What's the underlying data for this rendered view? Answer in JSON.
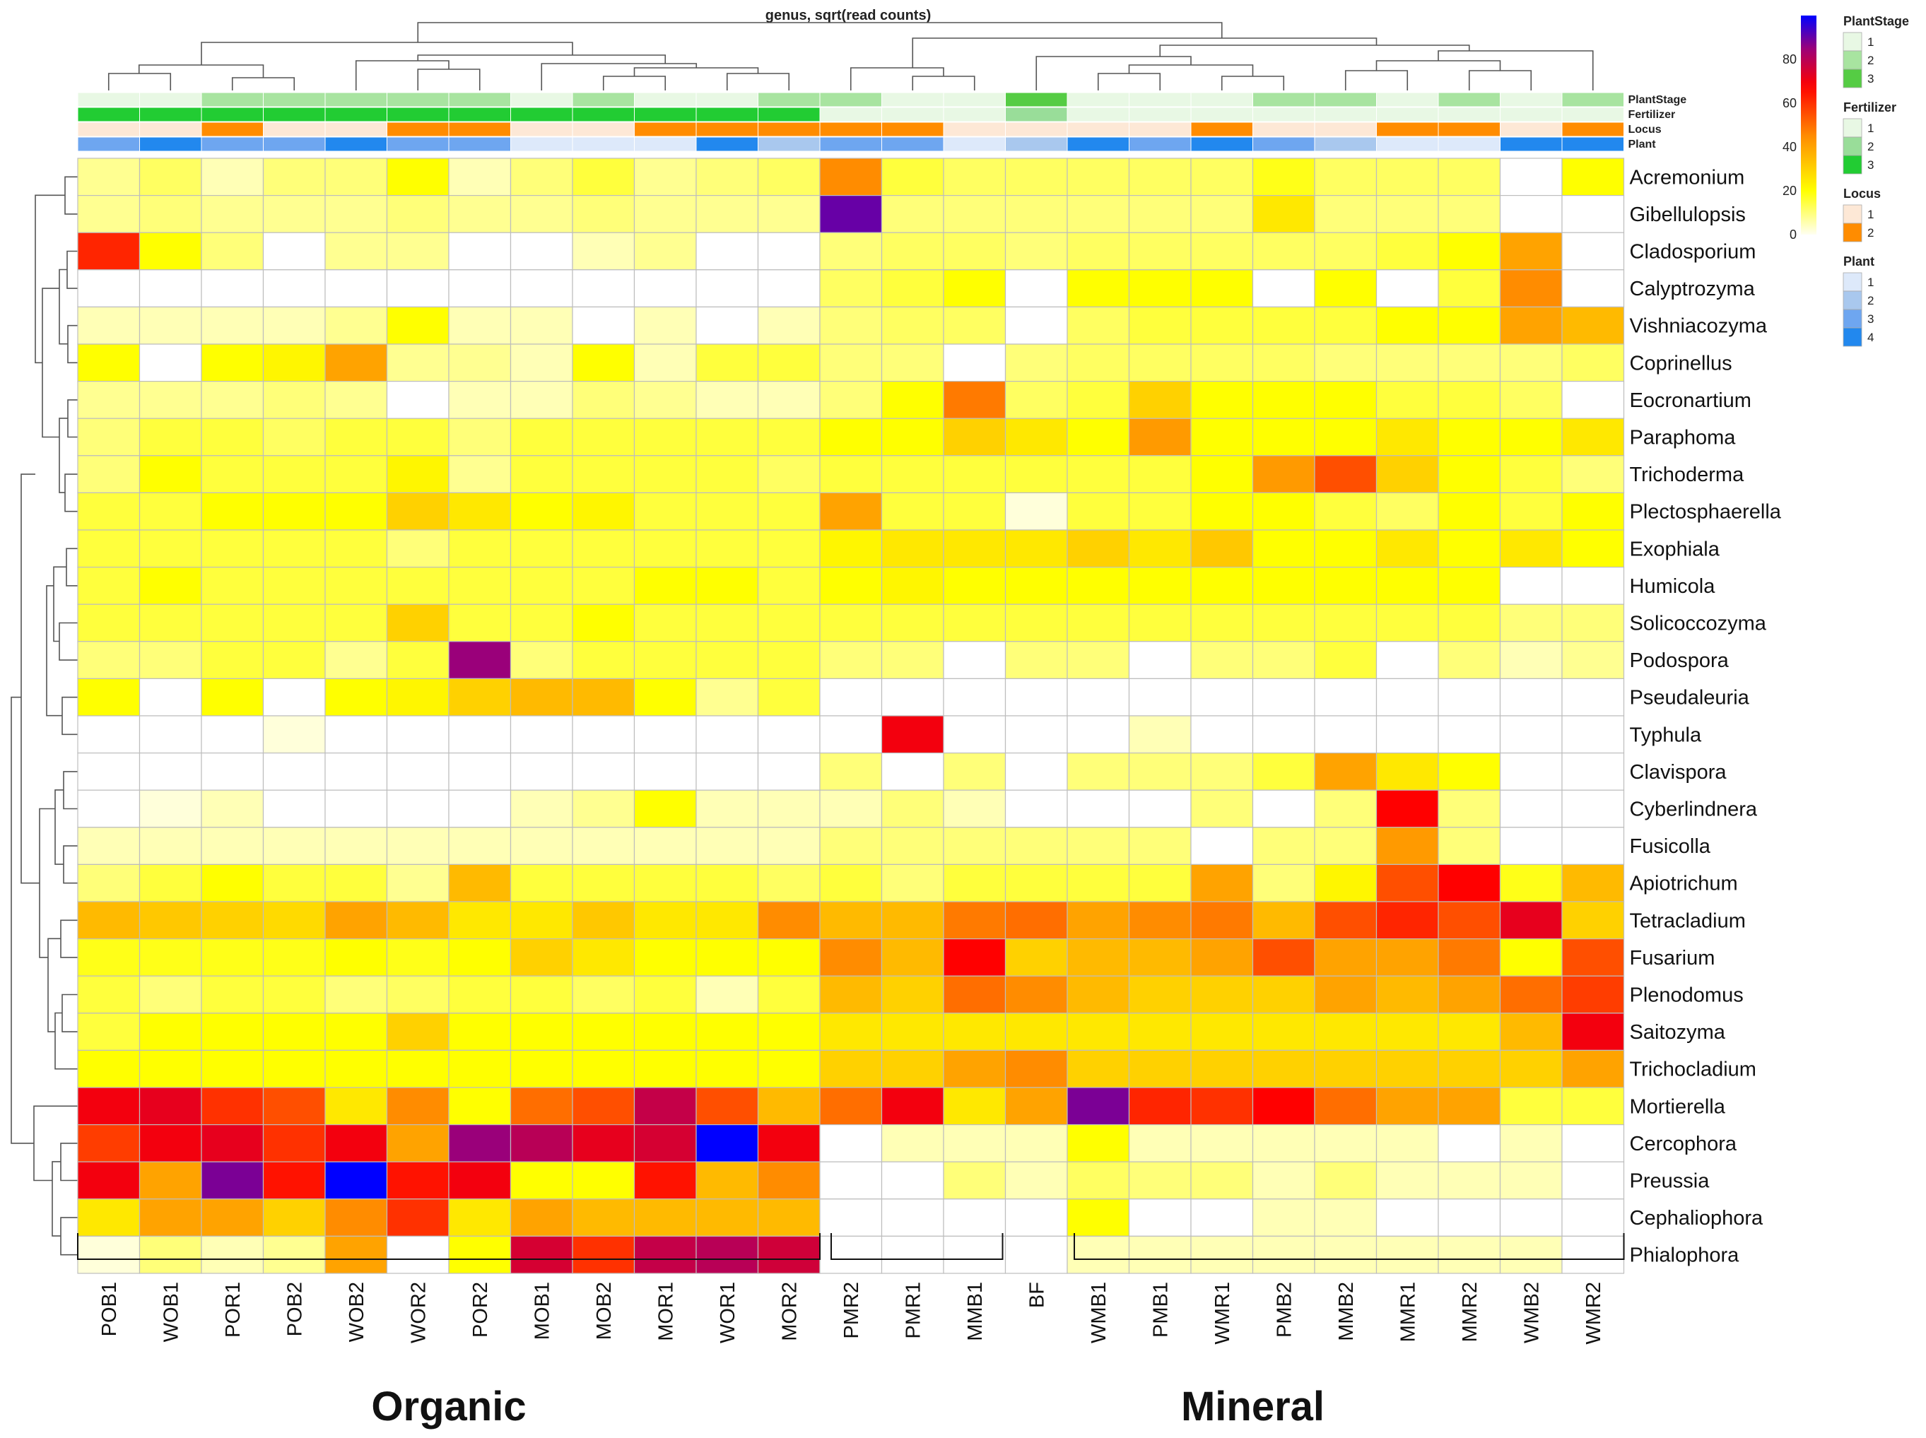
{
  "chart_data": {
    "type": "heatmap",
    "title": "genus, sqrt(read counts)",
    "columns": [
      "POB1",
      "WOB1",
      "POR1",
      "POB2",
      "WOB2",
      "WOR2",
      "POR2",
      "MOB1",
      "MOB2",
      "MOR1",
      "WOR1",
      "MOR2",
      "PMR2",
      "PMR1",
      "MMB1",
      "BF",
      "WMB1",
      "PMB1",
      "WMR1",
      "PMB2",
      "MMB2",
      "MMR1",
      "MMR2",
      "WMB2",
      "WMR2"
    ],
    "rows": [
      "Acremonium",
      "Gibellulopsis",
      "Cladosporium",
      "Calyptrozyma",
      "Vishniacozyma",
      "Coprinellus",
      "Eocronartium",
      "Paraphoma",
      "Trichoderma",
      "Plectosphaerella",
      "Exophiala",
      "Humicola",
      "Solicoccozyma",
      "Podospora",
      "Pseudaleuria",
      "Typhula",
      "Clavispora",
      "Cyberlindnera",
      "Fusicolla",
      "Apiotrichum",
      "Tetracladium",
      "Fusarium",
      "Plenodomus",
      "Saitozyma",
      "Trichocladium",
      "Mortierella",
      "Cercophora",
      "Preussia",
      "Cephaliophora",
      "Phialophora"
    ],
    "values": [
      [
        8,
        12,
        5,
        10,
        10,
        20,
        5,
        10,
        15,
        8,
        10,
        12,
        45,
        15,
        12,
        12,
        12,
        12,
        12,
        18,
        12,
        12,
        12,
        0,
        20
      ],
      [
        8,
        10,
        8,
        8,
        8,
        10,
        8,
        8,
        10,
        8,
        8,
        8,
        90,
        10,
        10,
        10,
        10,
        10,
        10,
        25,
        10,
        10,
        10,
        0,
        0
      ],
      [
        62,
        20,
        10,
        0,
        8,
        8,
        0,
        0,
        5,
        8,
        0,
        0,
        10,
        12,
        12,
        10,
        12,
        12,
        12,
        12,
        12,
        15,
        20,
        40,
        0
      ],
      [
        0,
        0,
        0,
        0,
        0,
        0,
        0,
        0,
        0,
        0,
        0,
        0,
        12,
        15,
        20,
        0,
        20,
        20,
        20,
        0,
        20,
        0,
        15,
        45,
        0
      ],
      [
        5,
        5,
        5,
        5,
        8,
        20,
        5,
        5,
        0,
        5,
        0,
        5,
        10,
        12,
        12,
        0,
        12,
        15,
        15,
        15,
        15,
        20,
        20,
        40,
        35
      ],
      [
        20,
        0,
        20,
        22,
        40,
        8,
        8,
        5,
        20,
        5,
        15,
        15,
        10,
        10,
        0,
        10,
        12,
        12,
        12,
        12,
        10,
        10,
        10,
        10,
        12
      ],
      [
        8,
        8,
        8,
        10,
        8,
        0,
        5,
        5,
        10,
        8,
        5,
        5,
        10,
        20,
        48,
        12,
        15,
        30,
        20,
        20,
        20,
        15,
        15,
        12,
        0
      ],
      [
        10,
        15,
        15,
        12,
        15,
        15,
        10,
        15,
        15,
        15,
        15,
        15,
        20,
        20,
        30,
        25,
        20,
        42,
        20,
        20,
        20,
        25,
        20,
        20,
        25
      ],
      [
        10,
        20,
        15,
        15,
        15,
        22,
        8,
        15,
        15,
        15,
        15,
        12,
        15,
        15,
        15,
        15,
        15,
        15,
        20,
        42,
        55,
        30,
        20,
        15,
        10
      ],
      [
        15,
        15,
        20,
        20,
        20,
        30,
        25,
        20,
        22,
        15,
        15,
        15,
        40,
        15,
        15,
        2,
        15,
        15,
        20,
        20,
        15,
        12,
        20,
        15,
        20
      ],
      [
        15,
        15,
        15,
        15,
        15,
        10,
        15,
        15,
        15,
        15,
        15,
        15,
        22,
        25,
        25,
        25,
        30,
        25,
        32,
        20,
        20,
        25,
        20,
        25,
        20
      ],
      [
        15,
        20,
        15,
        15,
        15,
        15,
        15,
        15,
        15,
        20,
        20,
        15,
        20,
        22,
        20,
        20,
        20,
        20,
        20,
        20,
        20,
        20,
        20,
        0,
        0
      ],
      [
        15,
        15,
        15,
        15,
        15,
        30,
        15,
        15,
        20,
        15,
        15,
        15,
        15,
        15,
        15,
        15,
        15,
        15,
        15,
        15,
        15,
        15,
        15,
        10,
        10
      ],
      [
        10,
        10,
        15,
        15,
        8,
        15,
        85,
        10,
        15,
        15,
        15,
        15,
        10,
        10,
        0,
        10,
        10,
        0,
        10,
        10,
        15,
        0,
        10,
        5,
        8
      ],
      [
        20,
        0,
        20,
        0,
        20,
        22,
        30,
        35,
        35,
        20,
        8,
        15,
        0,
        0,
        0,
        0,
        0,
        0,
        0,
        0,
        0,
        0,
        0,
        0,
        0
      ],
      [
        0,
        0,
        0,
        2,
        0,
        0,
        0,
        0,
        0,
        0,
        0,
        0,
        0,
        70,
        0,
        0,
        0,
        5,
        0,
        0,
        0,
        0,
        0,
        0,
        0
      ],
      [
        0,
        0,
        0,
        0,
        0,
        0,
        0,
        0,
        0,
        0,
        0,
        0,
        10,
        0,
        10,
        0,
        10,
        10,
        10,
        15,
        40,
        25,
        20,
        0,
        0
      ],
      [
        0,
        2,
        5,
        0,
        0,
        0,
        0,
        5,
        8,
        20,
        5,
        5,
        5,
        10,
        5,
        0,
        0,
        0,
        10,
        0,
        10,
        68,
        10,
        0,
        0
      ],
      [
        5,
        5,
        5,
        5,
        5,
        5,
        5,
        5,
        5,
        5,
        5,
        5,
        10,
        10,
        10,
        10,
        10,
        10,
        0,
        10,
        10,
        42,
        10,
        0,
        0
      ],
      [
        10,
        15,
        20,
        15,
        15,
        8,
        35,
        15,
        15,
        15,
        15,
        12,
        15,
        10,
        15,
        15,
        15,
        15,
        40,
        10,
        22,
        55,
        68,
        18,
        35
      ],
      [
        35,
        32,
        30,
        28,
        40,
        35,
        25,
        25,
        32,
        25,
        25,
        45,
        35,
        35,
        48,
        50,
        40,
        45,
        48,
        35,
        55,
        62,
        55,
        72,
        30
      ],
      [
        18,
        18,
        18,
        18,
        20,
        18,
        20,
        30,
        25,
        20,
        20,
        20,
        45,
        35,
        68,
        30,
        35,
        35,
        40,
        55,
        40,
        40,
        48,
        20,
        55
      ],
      [
        15,
        10,
        15,
        15,
        10,
        12,
        15,
        15,
        12,
        15,
        5,
        15,
        35,
        30,
        50,
        45,
        35,
        30,
        30,
        30,
        40,
        35,
        40,
        50,
        58
      ],
      [
        15,
        20,
        20,
        20,
        20,
        30,
        20,
        20,
        20,
        20,
        20,
        20,
        25,
        25,
        25,
        25,
        25,
        25,
        25,
        25,
        25,
        25,
        25,
        35,
        70
      ],
      [
        20,
        20,
        20,
        20,
        20,
        20,
        20,
        20,
        20,
        20,
        20,
        20,
        30,
        30,
        40,
        45,
        30,
        30,
        30,
        30,
        30,
        30,
        30,
        30,
        40
      ],
      [
        70,
        72,
        60,
        55,
        25,
        45,
        20,
        50,
        55,
        78,
        55,
        35,
        50,
        70,
        25,
        40,
        88,
        62,
        60,
        68,
        50,
        40,
        40,
        15,
        15
      ],
      [
        58,
        70,
        72,
        60,
        70,
        40,
        85,
        80,
        72,
        75,
        100,
        70,
        0,
        5,
        5,
        5,
        20,
        5,
        5,
        5,
        5,
        5,
        0,
        5,
        0
      ],
      [
        70,
        40,
        88,
        65,
        100,
        65,
        70,
        20,
        20,
        65,
        35,
        45,
        0,
        0,
        10,
        5,
        12,
        10,
        10,
        5,
        10,
        5,
        5,
        5,
        0
      ],
      [
        25,
        40,
        40,
        30,
        45,
        60,
        25,
        40,
        35,
        35,
        35,
        35,
        0,
        0,
        0,
        0,
        20,
        0,
        0,
        5,
        5,
        0,
        0,
        0,
        0
      ],
      [
        2,
        10,
        5,
        8,
        40,
        0,
        20,
        75,
        60,
        78,
        80,
        76,
        0,
        0,
        0,
        0,
        5,
        5,
        5,
        5,
        5,
        5,
        5,
        5,
        0
      ]
    ],
    "annotations": {
      "PlantStage": [
        1,
        1,
        2,
        2,
        2,
        2,
        2,
        1,
        2,
        1,
        1,
        2,
        2,
        1,
        1,
        3,
        1,
        1,
        1,
        2,
        2,
        1,
        2,
        1,
        2
      ],
      "Fertilizer": [
        3,
        3,
        3,
        3,
        3,
        3,
        3,
        3,
        3,
        3,
        3,
        3,
        1,
        1,
        1,
        2,
        1,
        1,
        1,
        1,
        1,
        1,
        1,
        1,
        1
      ],
      "Locus": [
        1,
        1,
        2,
        1,
        1,
        2,
        2,
        1,
        1,
        2,
        2,
        2,
        2,
        2,
        1,
        1,
        1,
        1,
        2,
        1,
        1,
        2,
        2,
        1,
        2
      ],
      "Plant": [
        3,
        4,
        3,
        3,
        4,
        3,
        3,
        1,
        1,
        1,
        4,
        2,
        3,
        3,
        1,
        2,
        4,
        3,
        4,
        3,
        2,
        1,
        1,
        4,
        4
      ]
    },
    "annotation_labels": [
      "PlantStage",
      "Fertilizer",
      "Locus",
      "Plant"
    ],
    "color_scale": {
      "range": [
        0,
        100
      ],
      "ticks": [
        "0",
        "20",
        "40",
        "60",
        "80"
      ],
      "stops": [
        "#fffff2",
        "#ffff00",
        "#ff8c00",
        "#ff0000",
        "#9a007a",
        "#0000ff"
      ]
    },
    "legends": [
      {
        "title": "PlantStage",
        "levels": [
          "1",
          "2",
          "3"
        ],
        "colors": [
          "#e8f8e4",
          "#a8e4a0",
          "#55cc44"
        ]
      },
      {
        "title": "Fertilizer",
        "levels": [
          "1",
          "2",
          "3"
        ],
        "colors": [
          "#e8f8e4",
          "#99dd99",
          "#22cc33"
        ]
      },
      {
        "title": "Locus",
        "levels": [
          "1",
          "2"
        ],
        "colors": [
          "#fde8d6",
          "#ff8c00"
        ]
      },
      {
        "title": "Plant",
        "levels": [
          "1",
          "2",
          "3",
          "4"
        ],
        "colors": [
          "#dde9fa",
          "#a9c8ee",
          "#6ea6f0",
          "#2288ee"
        ]
      }
    ],
    "groups": [
      {
        "label": "Organic"
      },
      {
        "label": "Mineral"
      }
    ]
  }
}
